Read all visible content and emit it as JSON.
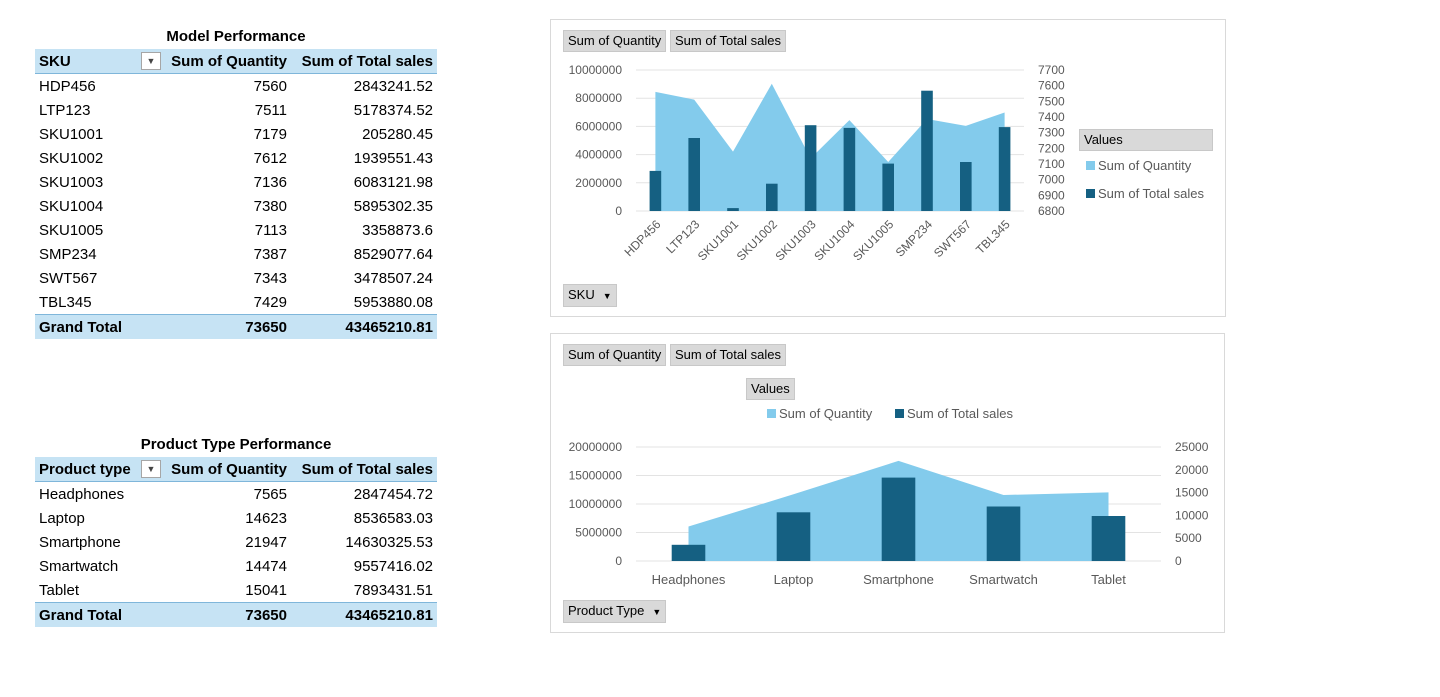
{
  "model_table": {
    "title": "Model Performance",
    "headers": [
      "SKU",
      "Sum of Quantity",
      "Sum of Total sales"
    ],
    "rows": [
      [
        "HDP456",
        "7560",
        "2843241.52"
      ],
      [
        "LTP123",
        "7511",
        "5178374.52"
      ],
      [
        "SKU1001",
        "7179",
        "205280.45"
      ],
      [
        "SKU1002",
        "7612",
        "1939551.43"
      ],
      [
        "SKU1003",
        "7136",
        "6083121.98"
      ],
      [
        "SKU1004",
        "7380",
        "5895302.35"
      ],
      [
        "SKU1005",
        "7113",
        "3358873.6"
      ],
      [
        "SMP234",
        "7387",
        "8529077.64"
      ],
      [
        "SWT567",
        "7343",
        "3478507.24"
      ],
      [
        "TBL345",
        "7429",
        "5953880.08"
      ]
    ],
    "total": [
      "Grand Total",
      "73650",
      "43465210.81"
    ]
  },
  "product_table": {
    "title": "Product Type Performance",
    "headers": [
      "Product type",
      "Sum of Quantity",
      "Sum of Total sales"
    ],
    "rows": [
      [
        "Headphones",
        "7565",
        "2847454.72"
      ],
      [
        "Laptop",
        "14623",
        "8536583.03"
      ],
      [
        "Smartphone",
        "21947",
        "14630325.53"
      ],
      [
        "Smartwatch",
        "14474",
        "9557416.02"
      ],
      [
        "Tablet",
        "15041",
        "7893431.51"
      ]
    ],
    "total": [
      "Grand Total",
      "73650",
      "43465210.81"
    ]
  },
  "chart1_buttons": {
    "value1": "Sum of Quantity",
    "value2": "Sum of Total sales",
    "axis": "SKU",
    "legend_title": "Values"
  },
  "chart2_buttons": {
    "value1": "Sum of Quantity",
    "value2": "Sum of Total sales",
    "axis": "Product Type",
    "legend_title": "Values"
  },
  "colors": {
    "area": "#83cbec",
    "bar": "#156082",
    "header_fill": "#c6e3f4",
    "button": "#d9d9d9"
  },
  "chart_data": [
    {
      "type": "bar",
      "categories": [
        "HDP456",
        "LTP123",
        "SKU1001",
        "SKU1002",
        "SKU1003",
        "SKU1004",
        "SKU1005",
        "SMP234",
        "SWT567",
        "TBL345"
      ],
      "series": [
        {
          "name": "Sum of Quantity",
          "kind": "area",
          "axis": "secondary",
          "values": [
            7560,
            7511,
            7179,
            7612,
            7136,
            7380,
            7113,
            7387,
            7343,
            7429
          ]
        },
        {
          "name": "Sum of Total sales",
          "kind": "bar",
          "axis": "primary",
          "values": [
            2843241.52,
            5178374.52,
            205280.45,
            1939551.43,
            6083121.98,
            5895302.35,
            3358873.6,
            8529077.64,
            3478507.24,
            5953880.08
          ]
        }
      ],
      "y_primary": {
        "min": 0,
        "max": 10000000,
        "ticks": [
          "10000000",
          "8000000",
          "6000000",
          "4000000",
          "2000000",
          "0"
        ]
      },
      "y_secondary": {
        "min": 6800,
        "max": 7700,
        "ticks": [
          "7700",
          "7600",
          "7500",
          "7400",
          "7300",
          "7200",
          "7100",
          "7000",
          "6900",
          "6800"
        ]
      },
      "legend": "right",
      "grid": true
    },
    {
      "type": "bar",
      "categories": [
        "Headphones",
        "Laptop",
        "Smartphone",
        "Smartwatch",
        "Tablet"
      ],
      "series": [
        {
          "name": "Sum of Quantity",
          "kind": "area",
          "axis": "secondary",
          "values": [
            7565,
            14623,
            21947,
            14474,
            15041
          ]
        },
        {
          "name": "Sum of Total sales",
          "kind": "bar",
          "axis": "primary",
          "values": [
            2847454.72,
            8536583.03,
            14630325.53,
            9557416.02,
            7893431.51
          ]
        }
      ],
      "y_primary": {
        "min": 0,
        "max": 20000000,
        "ticks": [
          "20000000",
          "15000000",
          "10000000",
          "5000000",
          "0"
        ]
      },
      "y_secondary": {
        "min": 0,
        "max": 25000,
        "ticks": [
          "25000",
          "20000",
          "15000",
          "10000",
          "5000",
          "0"
        ]
      },
      "legend": "top",
      "grid": true
    }
  ]
}
